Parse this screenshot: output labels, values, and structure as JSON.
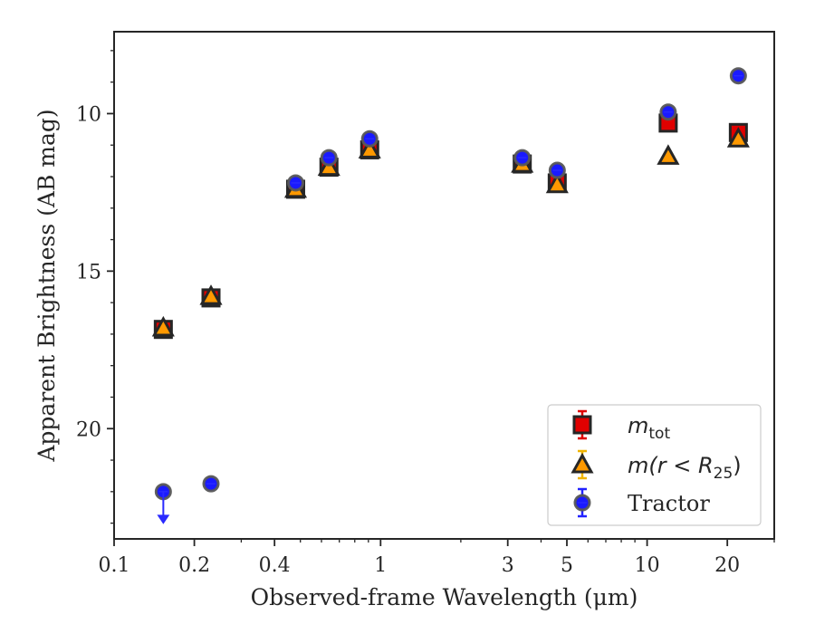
{
  "chart_data": {
    "type": "scatter",
    "xscale": "log",
    "xlabel": "Observed-frame Wavelength (μm)",
    "ylabel": "Apparent Brightness (AB mag)",
    "xlim": [
      0.1,
      30
    ],
    "ylim": [
      23.5,
      7.4
    ],
    "y_inverted": true,
    "grid": false,
    "legend_position": "lower-right",
    "x_ticks": [
      0.1,
      0.2,
      0.4,
      1,
      3,
      5,
      10,
      20
    ],
    "x_tick_labels": [
      "0.1",
      "0.2",
      "0.4",
      "1",
      "3",
      "5",
      "10",
      "20"
    ],
    "y_ticks": [
      10,
      15,
      20
    ],
    "y_tick_labels": [
      "10",
      "15",
      "20"
    ],
    "series": [
      {
        "name": "m_tot",
        "legend_label": {
          "base": "m",
          "sub": "tot"
        },
        "marker": "square",
        "color": "#e00000",
        "edgecolor": "#262626",
        "errcolor": "#e00000",
        "x": [
          0.153,
          0.231,
          0.48,
          0.64,
          0.91,
          3.4,
          4.6,
          12.0,
          22.0
        ],
        "y": [
          16.85,
          15.85,
          12.4,
          11.7,
          11.15,
          11.6,
          12.2,
          10.3,
          10.6
        ]
      },
      {
        "name": "m(r<R25)",
        "legend_label": {
          "text": "m(r < R",
          "sub": "25",
          "close": ")"
        },
        "marker": "triangle",
        "color": "#ff9900",
        "edgecolor": "#262626",
        "errcolor": "#f0b400",
        "x": [
          0.153,
          0.231,
          0.48,
          0.64,
          0.91,
          3.4,
          4.6,
          12.0,
          22.0
        ],
        "y": [
          16.8,
          15.8,
          12.4,
          11.7,
          11.15,
          11.6,
          12.25,
          11.35,
          10.8
        ]
      },
      {
        "name": "Tractor",
        "legend_label": {
          "text": "Tractor"
        },
        "marker": "circle",
        "color": "#1a1aff",
        "edgecolor": "#595959",
        "errcolor": "#2222ff",
        "x": [
          0.153,
          0.231,
          0.48,
          0.64,
          0.91,
          3.4,
          4.6,
          12.0,
          22.0
        ],
        "y": [
          22.0,
          21.75,
          12.2,
          11.4,
          10.8,
          11.4,
          11.8,
          9.95,
          8.8
        ],
        "upper_limit_index": 0
      }
    ]
  }
}
